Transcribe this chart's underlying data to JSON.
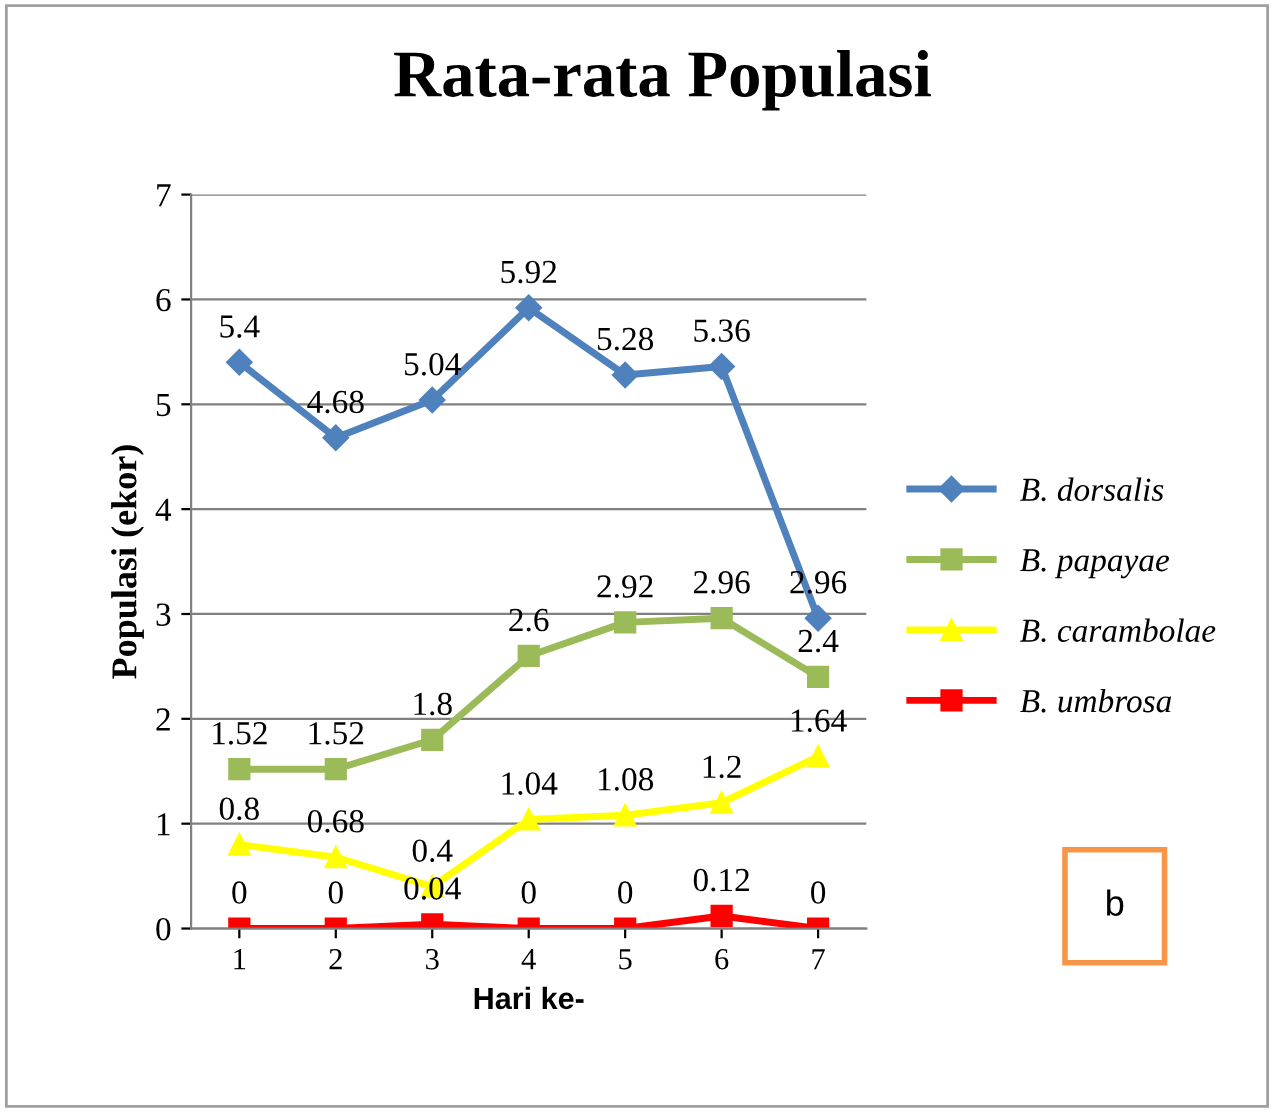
{
  "chart_data": {
    "type": "line",
    "title": "Rata-rata Populasi",
    "xlabel": "Hari ke-",
    "ylabel": "Populasi (ekor)",
    "categories": [
      "1",
      "2",
      "3",
      "4",
      "5",
      "6",
      "7"
    ],
    "series": [
      {
        "name": "B. dorsalis",
        "color": "#4f81bd",
        "marker": "diamond",
        "values": [
          5.4,
          4.68,
          5.04,
          5.92,
          5.28,
          5.36,
          2.96
        ]
      },
      {
        "name": "B. papayae",
        "color": "#9bbb59",
        "marker": "square",
        "values": [
          1.52,
          1.52,
          1.8,
          2.6,
          2.92,
          2.96,
          2.4
        ]
      },
      {
        "name": "B. carambolae",
        "color": "#ffff00",
        "marker": "triangle",
        "values": [
          0.8,
          0.68,
          0.4,
          1.04,
          1.08,
          1.2,
          1.64
        ]
      },
      {
        "name": "B. umbrosa",
        "color": "#ff0000",
        "marker": "square",
        "values": [
          0,
          0,
          0.04,
          0,
          0,
          0.12,
          0
        ]
      }
    ],
    "ylim": [
      0,
      7
    ],
    "yticks": [
      0,
      1,
      2,
      3,
      4,
      5,
      6,
      7
    ],
    "grid": "y",
    "legend": "right",
    "data_labels": true,
    "annotations": [
      "b"
    ]
  }
}
